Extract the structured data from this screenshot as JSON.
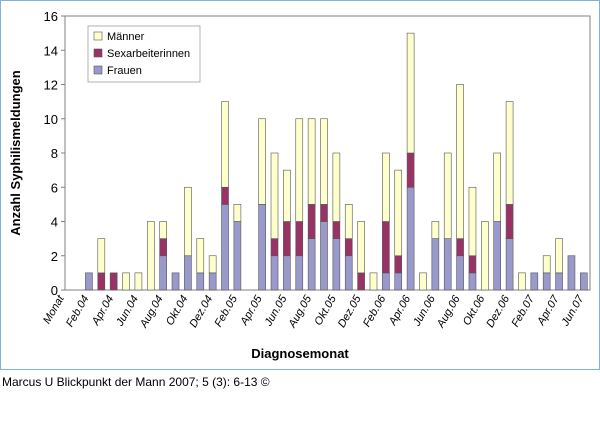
{
  "chart_data": {
    "type": "stacked_bar",
    "ylabel": "Anzahl Syphilismeldungen",
    "xlabel": "Diagnosemonat",
    "footer": "Marcus U Blickpunkt der Mann 2007; 5 (3): 6-13 ©",
    "categories": [
      "Monat",
      null,
      "Feb.04",
      null,
      "Apr.04",
      null,
      "Jun.04",
      null,
      "Aug.04",
      null,
      "Okt.04",
      null,
      "Dez.04",
      null,
      "Feb.05",
      null,
      "Apr.05",
      null,
      "Jun.05",
      null,
      "Aug.05",
      null,
      "Okt.05",
      null,
      "Dez.05",
      null,
      "Feb.06",
      null,
      "Apr.06",
      null,
      "Jun.06",
      null,
      "Aug.06",
      null,
      "Okt.06",
      null,
      "Dez.06",
      null,
      "Feb.07",
      null,
      "Apr.07",
      null,
      "Jun.07"
    ],
    "series": [
      {
        "name": "Frauen",
        "color": "#9999cc",
        "values": [
          0,
          0,
          1,
          0,
          0,
          0,
          0,
          0,
          2,
          1,
          2,
          1,
          1,
          5,
          4,
          0,
          5,
          2,
          2,
          2,
          3,
          4,
          3,
          2,
          0,
          0,
          1,
          1,
          6,
          0,
          3,
          3,
          2,
          1,
          0,
          4,
          3,
          0,
          1,
          1,
          1,
          2,
          1
        ]
      },
      {
        "name": "Sexarbeiterinnen",
        "color": "#993366",
        "values": [
          0,
          0,
          0,
          1,
          1,
          0,
          0,
          0,
          1,
          0,
          0,
          0,
          0,
          1,
          0,
          0,
          0,
          1,
          2,
          2,
          2,
          1,
          1,
          1,
          1,
          0,
          3,
          1,
          2,
          0,
          0,
          0,
          1,
          1,
          0,
          0,
          2,
          0,
          0,
          0,
          0,
          0,
          0
        ]
      },
      {
        "name": "Männer",
        "color": "#ffffcc",
        "values": [
          0,
          0,
          0,
          2,
          0,
          1,
          1,
          4,
          1,
          0,
          4,
          2,
          1,
          5,
          1,
          0,
          5,
          5,
          3,
          6,
          5,
          5,
          4,
          2,
          3,
          1,
          4,
          5,
          7,
          1,
          1,
          5,
          9,
          4,
          4,
          4,
          6,
          1,
          0,
          1,
          2,
          0,
          0
        ]
      }
    ],
    "ylim": [
      0,
      16
    ],
    "yticks": [
      0,
      2,
      4,
      6,
      8,
      10,
      12,
      14,
      16
    ],
    "legend": "top-left"
  }
}
